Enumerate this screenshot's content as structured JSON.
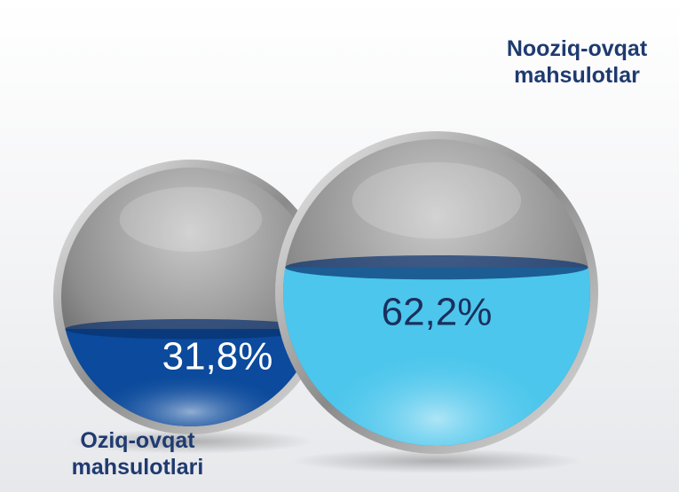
{
  "chart_data": {
    "type": "sphere-fill",
    "categories": [
      "Oziq-ovqat mahsulotlari",
      "Nooziq-ovqat mahsulotlar"
    ],
    "values": [
      31.8,
      62.2
    ],
    "value_labels": [
      "31,8%",
      "62,2%"
    ],
    "colors": [
      "#0b4a9c",
      "#4cc6ec"
    ]
  }
}
